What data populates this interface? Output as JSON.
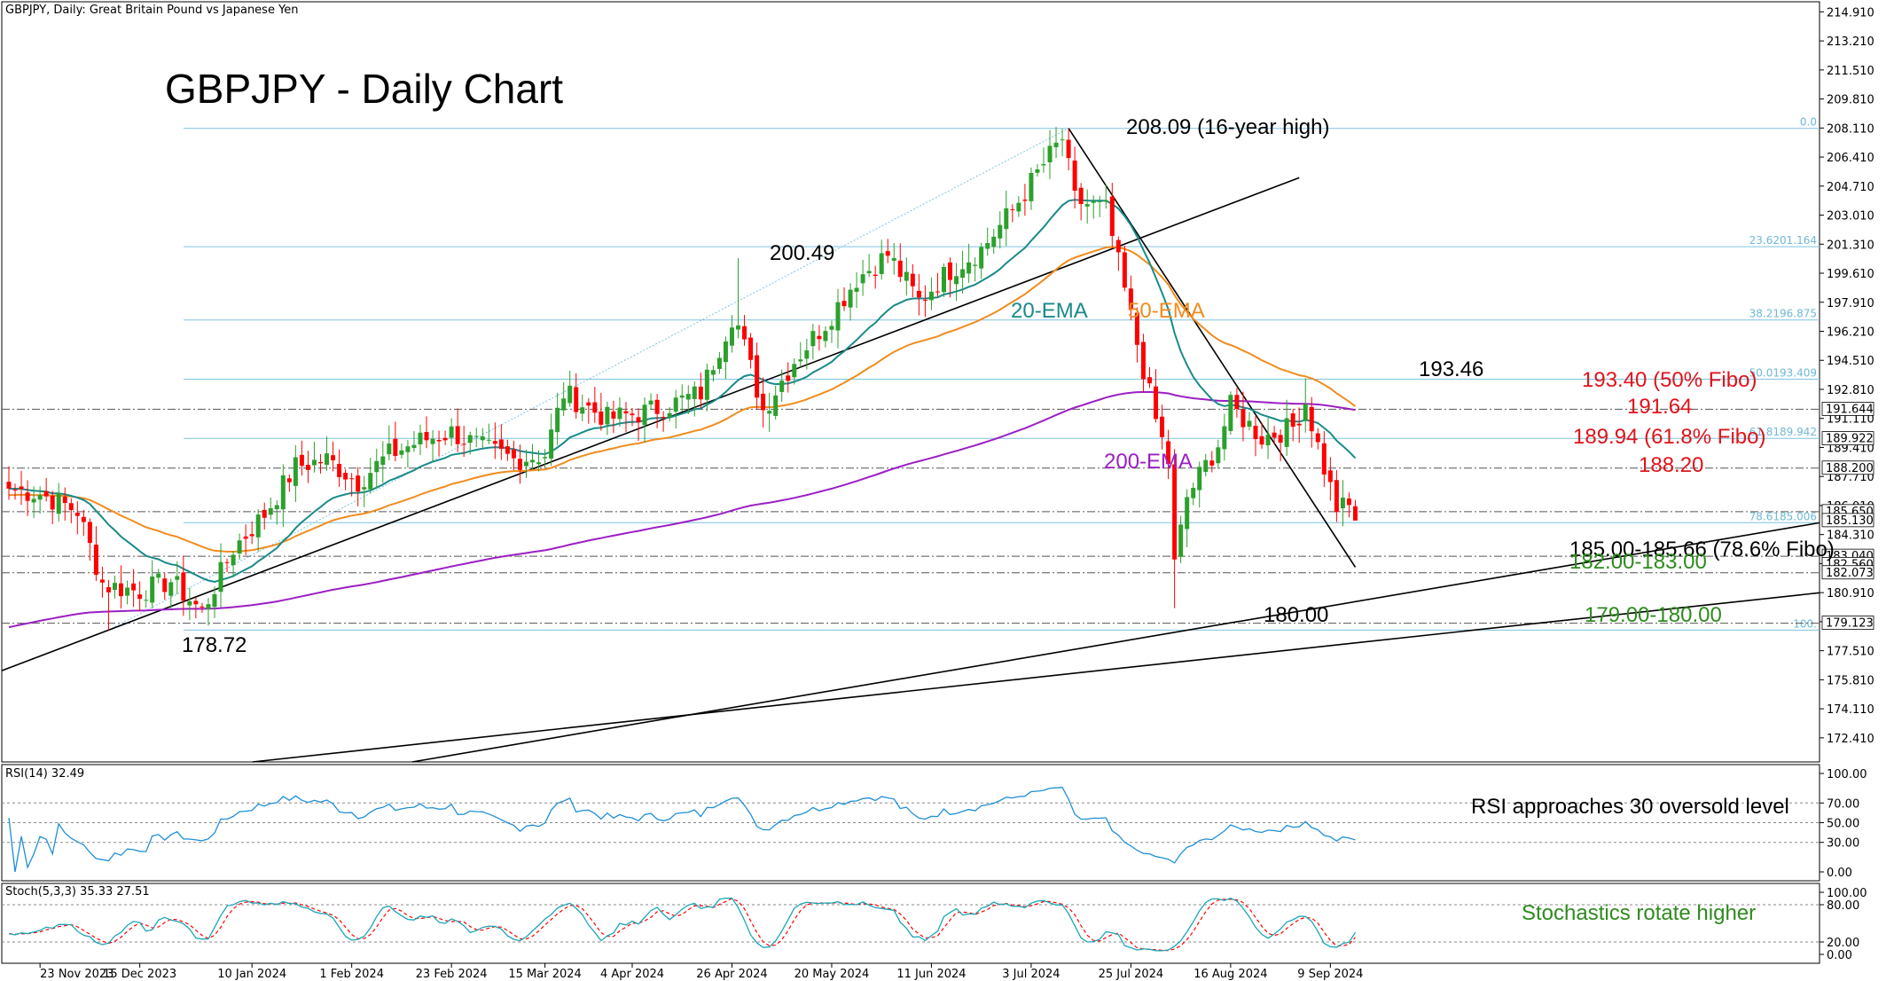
{
  "header": {
    "symbol_line": "GBPJPY, Daily:  Great Britain Pound vs Japanese Yen",
    "title": "GBPJPY - Daily Chart"
  },
  "colors": {
    "bull": "#2ca02c",
    "bear": "#ff0000",
    "ema20": "#1a8a8a",
    "ema50": "#f08c1e",
    "ema200": "#9b1fc4",
    "fibo": "#7ec3e0",
    "rsi": "#1f8fd6",
    "stoch_k": "#1aa6b8",
    "stoch_d": "#ff0000",
    "support_green": "#2e8b1e",
    "resistance_red": "#e0131b"
  },
  "chart_data": [
    {
      "type": "candlestick",
      "panel": "price",
      "ylim": [
        171.0,
        215.5
      ],
      "x_labels": [
        "23 Nov 2023",
        "15 Dec 2023",
        "10 Jan 2024",
        "1 Feb 2024",
        "23 Feb 2024",
        "15 Mar 2024",
        "4 Apr 2024",
        "26 Apr 2024",
        "20 May 2024",
        "11 Jun 2024",
        "3 Jul 2024",
        "25 Jul 2024",
        "16 Aug 2024",
        "9 Sep 2024"
      ],
      "y_ticks": [
        "214.910",
        "213.210",
        "211.510",
        "209.810",
        "208.110",
        "206.410",
        "204.710",
        "203.010",
        "201.310",
        "199.610",
        "197.910",
        "196.210",
        "194.510",
        "192.810",
        "191.110",
        "189.410",
        "187.710",
        "186.010",
        "184.310",
        "182.610",
        "180.910",
        "179.210",
        "177.510",
        "175.810",
        "174.110",
        "172.410"
      ],
      "price_tags": [
        {
          "label": "191.644",
          "value": 191.644
        },
        {
          "label": "189.922",
          "value": 189.922
        },
        {
          "label": "188.200",
          "value": 188.2
        },
        {
          "label": "185.650",
          "value": 185.65
        },
        {
          "label": "185.130",
          "value": 185.13
        },
        {
          "label": "183.040",
          "value": 183.04
        },
        {
          "label": "182.560",
          "value": 182.56
        },
        {
          "label": "182.073",
          "value": 182.073
        },
        {
          "label": "179.123",
          "value": 179.123
        }
      ],
      "fibo_levels": [
        {
          "label": "0.0",
          "value": 208.09
        },
        {
          "label": "23.6201.164",
          "value": 201.164
        },
        {
          "label": "38.2196.875",
          "value": 196.875
        },
        {
          "label": "50.0193.409",
          "value": 193.409
        },
        {
          "label": "61.8189.942",
          "value": 189.942
        },
        {
          "label": "78.6185.006",
          "value": 185.006
        },
        {
          "label": "100.0178.72",
          "value": 178.72
        }
      ],
      "fibo_short_labels": {
        "last": "100."
      },
      "ema_labels": [
        "20-EMA",
        "50-EMA",
        "200-EMA"
      ],
      "annotations": [
        {
          "text": "208.09 (16-year high)",
          "color": "black"
        },
        {
          "text": "200.49",
          "color": "black"
        },
        {
          "text": "178.72",
          "color": "black"
        },
        {
          "text": "180.00",
          "color": "black"
        },
        {
          "text": "193.46",
          "color": "black"
        },
        {
          "text": "193.40 (50% Fibo)",
          "color": "red"
        },
        {
          "text": "191.64",
          "color": "red"
        },
        {
          "text": "189.94 (61.8% Fibo)",
          "color": "red"
        },
        {
          "text": "188.20",
          "color": "red"
        },
        {
          "text": "185.00-185.66 (78.6% Fibo)",
          "color": "black"
        },
        {
          "text": "182.00-183.00",
          "color": "green"
        },
        {
          "text": "179.00-180.00",
          "color": "green"
        }
      ],
      "key_points": [
        {
          "date": "2023-12-08",
          "value": 178.72
        },
        {
          "date": "2024-04-29",
          "value": 200.49
        },
        {
          "date": "2024-07-11",
          "value": 208.09
        },
        {
          "date": "2024-08-05",
          "value": 180.0
        },
        {
          "date": "2024-09-03",
          "value": 193.46
        },
        {
          "date": "2024-09-13",
          "value": 185.13
        }
      ]
    },
    {
      "type": "line",
      "panel": "rsi",
      "name": "RSI(14)",
      "header": "RSI(14) 32.49",
      "ylim": [
        0,
        100
      ],
      "y_ticks": [
        "100.00",
        "70.00",
        "50.00",
        "30.00",
        "0.00"
      ],
      "levels": [
        70,
        50,
        30
      ],
      "note": "RSI approaches 30 oversold level",
      "last": 32.49
    },
    {
      "type": "line",
      "panel": "stochastic",
      "name": "Stoch(5,3,3)",
      "header": "Stoch(5,3,3) 35.33 27.51",
      "ylim": [
        0,
        100
      ],
      "y_ticks": [
        "100.00",
        "80.00",
        "20.00",
        "0.00"
      ],
      "levels": [
        80,
        20
      ],
      "note": "Stochastics rotate higher",
      "last_k": 35.33,
      "last_d": 27.51
    }
  ]
}
